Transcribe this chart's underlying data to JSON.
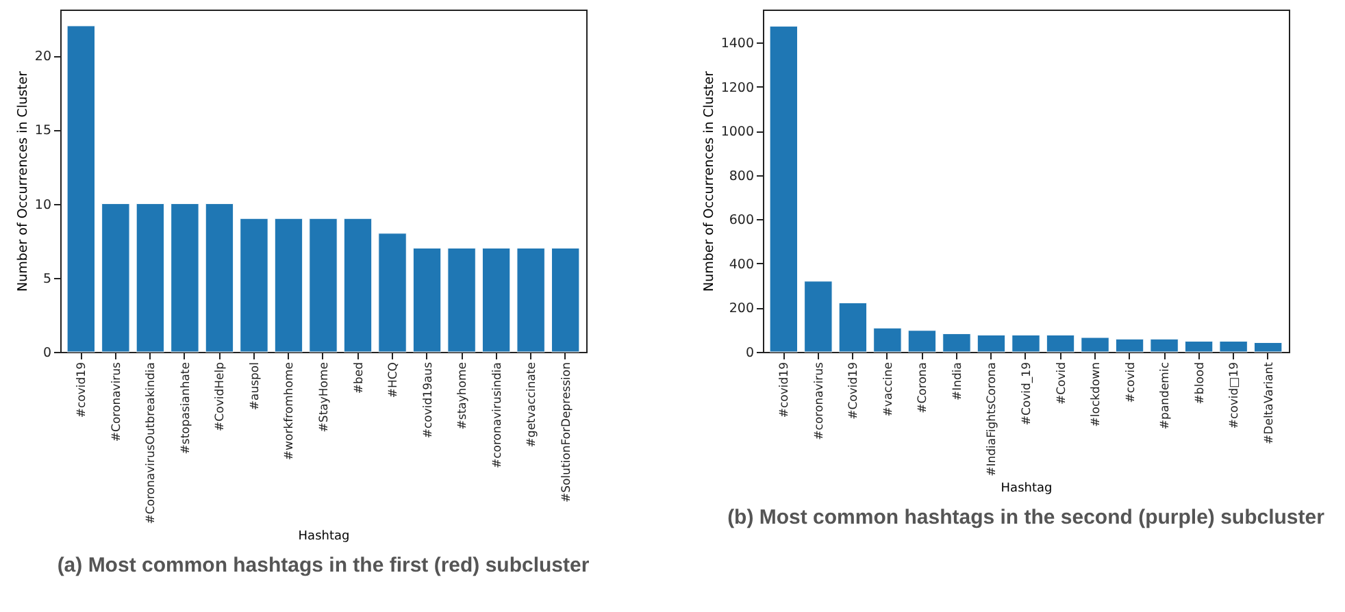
{
  "chart_data": [
    {
      "type": "bar",
      "title": "(a) Most common hashtags in the first (red) subcluster",
      "xlabel": "Hashtag",
      "ylabel": "Number of Occurrences in Cluster",
      "categories": [
        "#covid19",
        "#Coronavirus",
        "#CoronavirusOutbreakindia",
        "#stopasianhate",
        "#CovidHelp",
        "#auspol",
        "#workfromhome",
        "#StayHome",
        "#bed",
        "#HCQ",
        "#covid19aus",
        "#stayhome",
        "#coronavirusindia",
        "#getvaccinate",
        "#SolutionForDepression"
      ],
      "values": [
        22,
        10,
        10,
        10,
        10,
        9,
        9,
        9,
        9,
        8,
        7,
        7,
        7,
        7,
        7
      ],
      "color": "#1f77b4",
      "ylim": [
        0,
        23.1
      ],
      "yticks": [
        0,
        5,
        10,
        15,
        20
      ]
    },
    {
      "type": "bar",
      "title": "(b) Most common hashtags in the second (purple) subcluster",
      "xlabel": "Hashtag",
      "ylabel": "Number of Occurrences in Cluster",
      "categories": [
        "#covid19",
        "#coronavirus",
        "#Covid19",
        "#vaccine",
        "#Corona",
        "#India",
        "#IndiaFightsCorona",
        "#Covid_19",
        "#Covid",
        "#lockdown",
        "#covid",
        "#pandemic",
        "#blood",
        "#covid□19",
        "#DeltaVariant"
      ],
      "values": [
        1475,
        320,
        222,
        108,
        97,
        82,
        76,
        76,
        76,
        65,
        58,
        58,
        48,
        48,
        42
      ],
      "color": "#1f77b4",
      "ylim": [
        0,
        1550
      ],
      "yticks": [
        0,
        200,
        400,
        600,
        800,
        1000,
        1200,
        1400
      ]
    }
  ]
}
